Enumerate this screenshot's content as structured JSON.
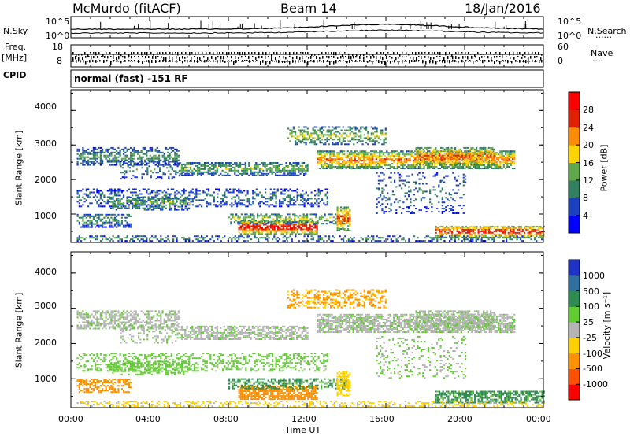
{
  "header": {
    "radar": "McMurdo (fitACF)",
    "beam": "Beam 14",
    "date": "18/Jan/2016"
  },
  "aux": {
    "nsky_label": "N.Sky",
    "nsearch_label": "N.Search",
    "noise_ticks_left": [
      "10^5",
      "10^0"
    ],
    "noise_ticks_right": [
      "10^5",
      "10^0"
    ],
    "freq_label_1": "Freq.",
    "freq_label_2": "[MHz]",
    "freq_ticks": [
      "18",
      "8"
    ],
    "nave_label": "Nave",
    "nave_ticks": [
      "60",
      "0"
    ],
    "cpid_label": "CPID",
    "cpid_text": "normal (fast) -151 RF"
  },
  "chart_data": [
    {
      "type": "heatmap",
      "name": "power",
      "ylabel": "Slant Range [km]",
      "xlabel": "",
      "ylim": [
        180,
        4600
      ],
      "yticks": [
        "1000",
        "2000",
        "3000",
        "4000"
      ],
      "xlim_hours": [
        0,
        24
      ],
      "colorbar": {
        "label": "Power [dB]",
        "ticks": [
          "4",
          "8",
          "12",
          "16",
          "20",
          "24",
          "28"
        ],
        "colors": [
          "#0000ff",
          "#1a3fbf",
          "#2f7f60",
          "#5ea84a",
          "#ffd400",
          "#ff8c00",
          "#e02000",
          "#ff0000"
        ]
      }
    },
    {
      "type": "heatmap",
      "name": "velocity",
      "ylabel": "Slant Range [km]",
      "xlabel": "Time UT",
      "ylim": [
        180,
        4600
      ],
      "yticks": [
        "1000",
        "2000",
        "3000",
        "4000"
      ],
      "xticks": [
        "00:00",
        "04:00",
        "08:00",
        "12:00",
        "16:00",
        "20:00",
        "00:00"
      ],
      "colorbar": {
        "label": "Velocity [m s⁻¹]",
        "ticks": [
          "1000",
          "500",
          "100",
          "25",
          "-25",
          "-100",
          "-500",
          "-1000"
        ],
        "colors": [
          "#1e32c8",
          "#2f6fa0",
          "#2e8c50",
          "#60cc30",
          "#b4b4b4",
          "#ffd000",
          "#ff9000",
          "#ff5000",
          "#ff0000"
        ]
      }
    }
  ]
}
